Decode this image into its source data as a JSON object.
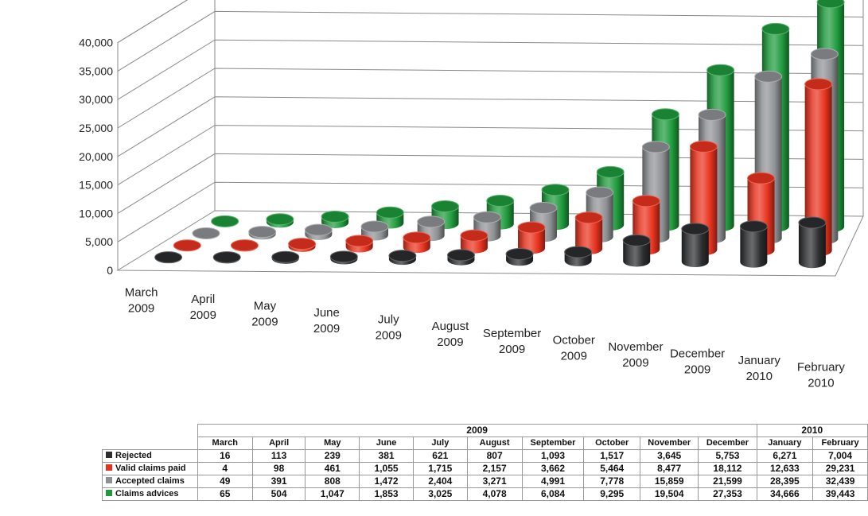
{
  "chart_data": {
    "type": "bar",
    "subtype": "3d-cylinder",
    "ylim": [
      0,
      40000
    ],
    "yticks": [
      "0",
      "5,000",
      "10,000",
      "15,000",
      "20,000",
      "25,000",
      "30,000",
      "35,000",
      "40,000"
    ],
    "grid": true,
    "categories": [
      [
        "March",
        "2009"
      ],
      [
        "April",
        "2009"
      ],
      [
        "May",
        "2009"
      ],
      [
        "June",
        "2009"
      ],
      [
        "July",
        "2009"
      ],
      [
        "August",
        "2009"
      ],
      [
        "September",
        "2009"
      ],
      [
        "October",
        "2009"
      ],
      [
        "November",
        "2009"
      ],
      [
        "December",
        "2009"
      ],
      [
        "January",
        "2010"
      ],
      [
        "February",
        "2010"
      ]
    ],
    "series": [
      {
        "name": "Rejected",
        "color": "#2b2d2f",
        "values": [
          16,
          113,
          239,
          381,
          621,
          807,
          1093,
          1517,
          3645,
          5753,
          6271,
          7004
        ],
        "labels": [
          "16",
          "113",
          "239",
          "381",
          "621",
          "807",
          "1,093",
          "1,517",
          "3,645",
          "5,753",
          "6,271",
          "7,004"
        ]
      },
      {
        "name": "Valid claims paid",
        "color": "#e8321e",
        "values": [
          4,
          98,
          461,
          1055,
          1715,
          2157,
          3662,
          5464,
          8477,
          18112,
          12633,
          29231
        ],
        "labels": [
          "4",
          "98",
          "461",
          "1,055",
          "1,715",
          "2,157",
          "3,662",
          "5,464",
          "8,477",
          "18,112",
          "12,633",
          "29,231"
        ]
      },
      {
        "name": "Accepted claims",
        "color": "#8e9194",
        "values": [
          49,
          391,
          808,
          1472,
          2404,
          3271,
          4991,
          7778,
          15859,
          21599,
          28395,
          32439
        ],
        "labels": [
          "49",
          "391",
          "808",
          "1,472",
          "2,404",
          "3,271",
          "4,991",
          "7,778",
          "15,859",
          "21,599",
          "28,395",
          "32,439"
        ]
      },
      {
        "name": "Claims advices",
        "color": "#1e9a3c",
        "values": [
          65,
          504,
          1047,
          1853,
          3025,
          4078,
          6084,
          9295,
          19504,
          27353,
          34666,
          39443
        ],
        "labels": [
          "65",
          "504",
          "1,047",
          "1,853",
          "3,025",
          "4,078",
          "6,084",
          "9,295",
          "19,504",
          "27,353",
          "34,666",
          "39,443"
        ]
      }
    ]
  },
  "table": {
    "years": [
      {
        "label": "2009",
        "span": 10
      },
      {
        "label": "2010",
        "span": 2
      }
    ],
    "months": [
      "March",
      "April",
      "May",
      "June",
      "July",
      "August",
      "September",
      "October",
      "November",
      "December",
      "January",
      "February"
    ]
  }
}
